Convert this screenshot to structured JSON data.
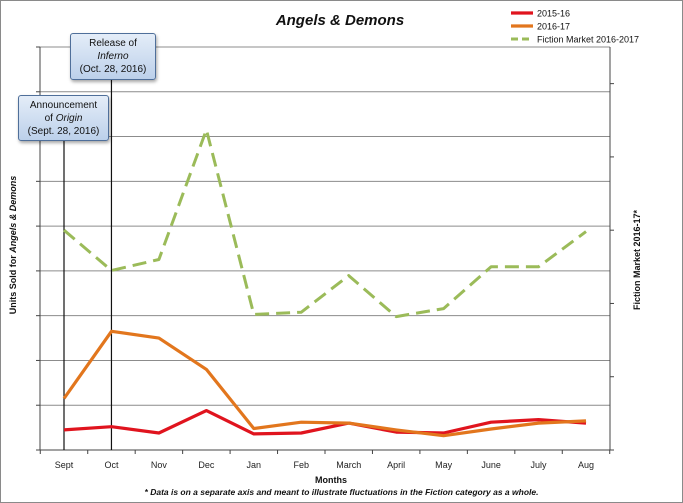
{
  "chart_data": {
    "type": "line",
    "title": "Angels & Demons",
    "xlabel": "Months",
    "ylabel_left": "Units Sold for Angels & Demons",
    "ylabel_right": "Fiction Market 2016-17*",
    "categories": [
      "Sept",
      "Oct",
      "Nov",
      "Dec",
      "Jan",
      "Feb",
      "March",
      "April",
      "May",
      "June",
      "July",
      "Aug"
    ],
    "grid": true,
    "legend_position": "top-right",
    "left_axis": {
      "ylim": [
        0,
        9
      ],
      "tick_labels_shown": false
    },
    "right_axis": {
      "ylim": [
        0,
        5.5
      ],
      "tick_labels_shown": false
    },
    "series": [
      {
        "name": "2015-16",
        "axis": "left",
        "color": "#e0141e",
        "dash": "solid",
        "values": [
          0.45,
          0.52,
          0.38,
          0.88,
          0.36,
          0.38,
          0.6,
          0.4,
          0.38,
          0.62,
          0.68,
          0.6
        ]
      },
      {
        "name": "2016-17",
        "axis": "left",
        "color": "#e2761d",
        "dash": "solid",
        "values": [
          1.15,
          2.65,
          2.5,
          1.8,
          0.48,
          0.62,
          0.6,
          0.45,
          0.32,
          0.47,
          0.6,
          0.65
        ]
      },
      {
        "name": "Fiction Market 2016-2017",
        "axis": "right",
        "color": "#9bbb59",
        "dash": "dashed",
        "values": [
          3.0,
          2.45,
          2.6,
          4.37,
          1.85,
          1.88,
          2.38,
          1.82,
          1.93,
          2.5,
          2.5,
          2.98
        ]
      }
    ],
    "annotations": [
      {
        "category": "Sept",
        "lines": [
          "Announcement",
          "of Origin",
          "(Sept. 28, 2016)"
        ]
      },
      {
        "category": "Oct",
        "lines": [
          "Release of",
          "Inferno",
          "(Oct. 28, 2016)"
        ]
      }
    ],
    "footnote": "* Data is on a separate axis and meant to illustrate fluctuations in the Fiction category as a whole."
  },
  "callouts": {
    "origin": {
      "line1": "Announcement",
      "line2_prefix": "of ",
      "line2_italic": "Origin",
      "line3": "(Sept. 28, 2016)"
    },
    "inferno": {
      "line1": "Release of",
      "line2_italic": "Inferno",
      "line3": "(Oct. 28, 2016)"
    }
  },
  "colors": {
    "gridline": "#8c8c8c",
    "axis": "#444444",
    "marker_line": "#111111"
  }
}
